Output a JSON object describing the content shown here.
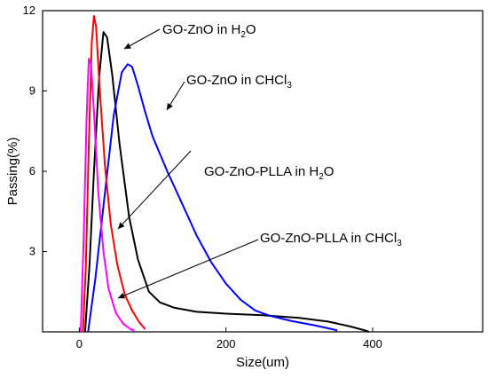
{
  "chart_data": {
    "type": "line",
    "xlabel": "Size(um)",
    "ylabel": "Passing(%)",
    "xlim": [
      -50,
      550
    ],
    "ylim": [
      0,
      12
    ],
    "xticks": [
      0,
      200,
      400
    ],
    "yticks": [
      3,
      6,
      9,
      12
    ],
    "grid": false,
    "legend": "none",
    "series": [
      {
        "color": "#000000",
        "points": [
          [
            8,
            0.0
          ],
          [
            14,
            2.5
          ],
          [
            20,
            6.0
          ],
          [
            27,
            9.5
          ],
          [
            33,
            11.2
          ],
          [
            38,
            11.0
          ],
          [
            45,
            9.6
          ],
          [
            55,
            7.0
          ],
          [
            68,
            4.3
          ],
          [
            80,
            2.7
          ],
          [
            95,
            1.5
          ],
          [
            110,
            1.1
          ],
          [
            130,
            0.9
          ],
          [
            160,
            0.75
          ],
          [
            200,
            0.68
          ],
          [
            250,
            0.62
          ],
          [
            300,
            0.52
          ],
          [
            340,
            0.38
          ],
          [
            370,
            0.2
          ],
          [
            390,
            0.05
          ],
          [
            395,
            0.0
          ]
        ]
      },
      {
        "color": "#0000ff",
        "points": [
          [
            12,
            0.0
          ],
          [
            22,
            2.0
          ],
          [
            35,
            5.2
          ],
          [
            47,
            8.1
          ],
          [
            58,
            9.7
          ],
          [
            66,
            10.0
          ],
          [
            72,
            9.9
          ],
          [
            80,
            9.2
          ],
          [
            90,
            8.2
          ],
          [
            100,
            7.3
          ],
          [
            120,
            6.0
          ],
          [
            140,
            4.8
          ],
          [
            160,
            3.6
          ],
          [
            180,
            2.6
          ],
          [
            200,
            1.8
          ],
          [
            220,
            1.2
          ],
          [
            240,
            0.8
          ],
          [
            260,
            0.6
          ],
          [
            290,
            0.4
          ],
          [
            320,
            0.25
          ],
          [
            345,
            0.1
          ],
          [
            352,
            0.05
          ]
        ]
      },
      {
        "color": "#ff0000",
        "points": [
          [
            5,
            0.0
          ],
          [
            9,
            2.5
          ],
          [
            13,
            7.0
          ],
          [
            17,
            10.8
          ],
          [
            20,
            11.8
          ],
          [
            23,
            11.4
          ],
          [
            28,
            9.0
          ],
          [
            35,
            6.2
          ],
          [
            43,
            4.0
          ],
          [
            52,
            2.5
          ],
          [
            62,
            1.4
          ],
          [
            72,
            0.8
          ],
          [
            82,
            0.35
          ],
          [
            90,
            0.1
          ]
        ]
      },
      {
        "color": "#ff00ff",
        "points": [
          [
            2,
            0.0
          ],
          [
            6,
            3.5
          ],
          [
            10,
            8.0
          ],
          [
            13,
            10.2
          ],
          [
            16,
            10.0
          ],
          [
            20,
            8.2
          ],
          [
            26,
            5.2
          ],
          [
            33,
            3.0
          ],
          [
            40,
            1.6
          ],
          [
            50,
            0.7
          ],
          [
            60,
            0.3
          ],
          [
            70,
            0.1
          ],
          [
            75,
            0.05
          ]
        ]
      }
    ],
    "annotations": [
      {
        "text": "GO-ZnO in H",
        "sub": "2",
        "after": "O"
      },
      {
        "text": "GO-ZnO in CHCl",
        "sub": "3",
        "after": ""
      },
      {
        "text": "GO-ZnO-PLLA in H",
        "sub": "2",
        "after": "O"
      },
      {
        "text": "GO-ZnO-PLLA in CHCl",
        "sub": "3",
        "after": ""
      }
    ]
  }
}
